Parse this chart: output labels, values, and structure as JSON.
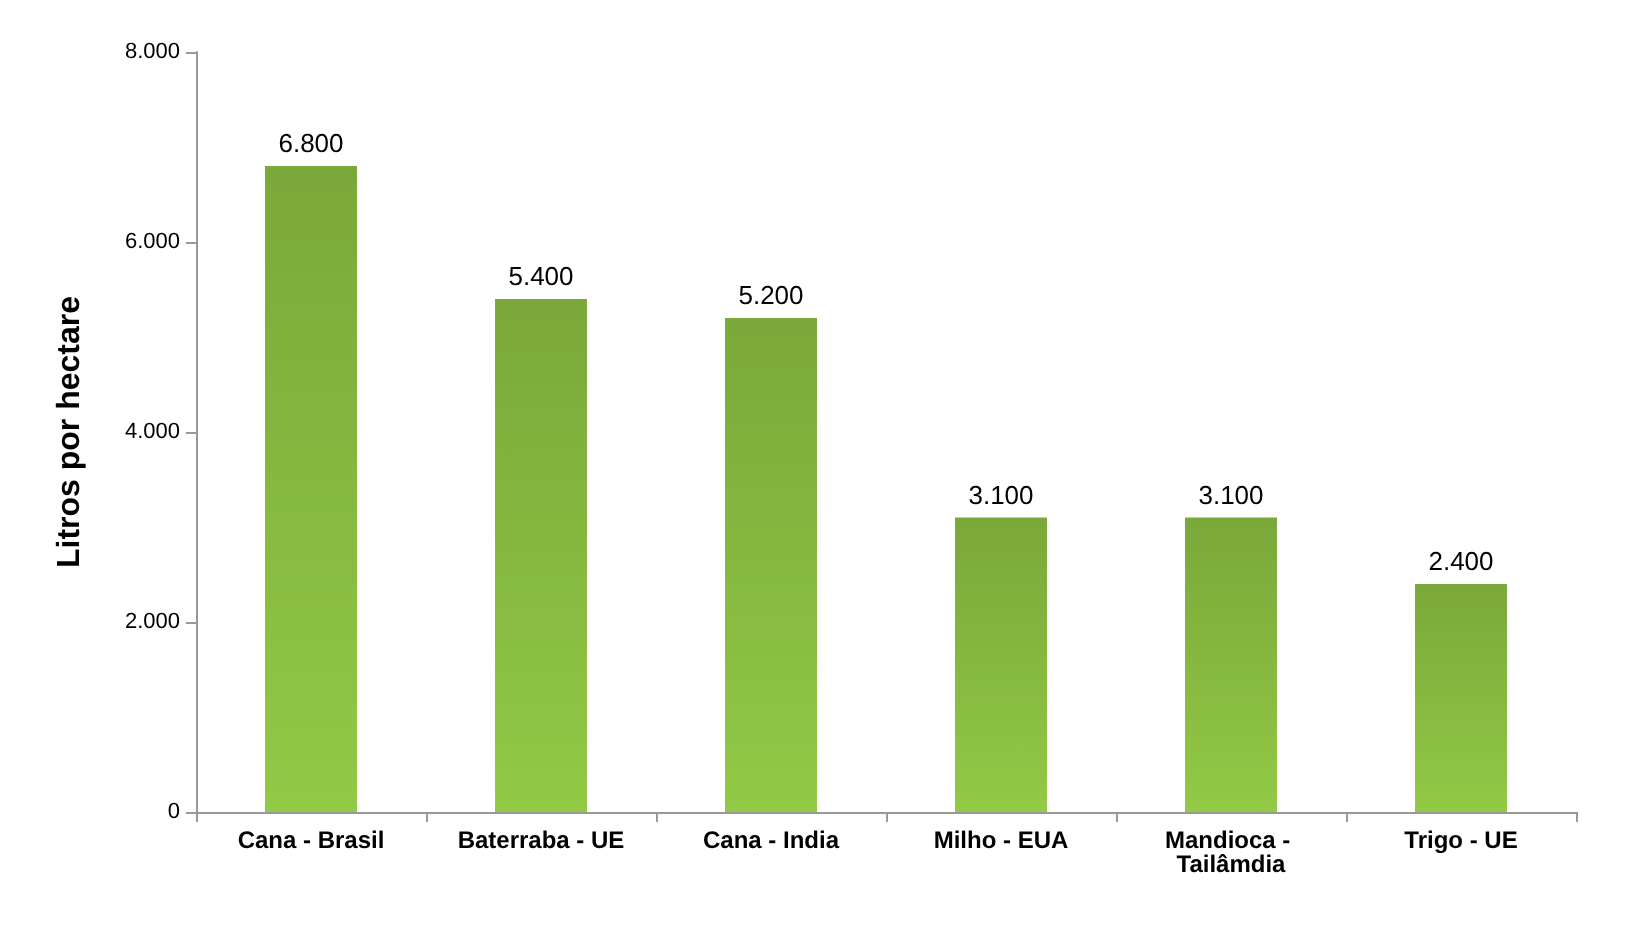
{
  "chart_data": {
    "type": "bar",
    "ylabel": "Litros por hectare",
    "categories": [
      "Cana - Brasil",
      "Baterraba - UE",
      "Cana - India",
      "Milho - EUA",
      "Mandioca - Tailâmdia",
      "Trigo - UE"
    ],
    "values": [
      6800,
      5400,
      5200,
      3100,
      3100,
      2400
    ],
    "value_labels": [
      "6.800",
      "5.400",
      "5.200",
      "3.100",
      "3.100",
      "2.400"
    ],
    "color": "#7aa83a",
    "ylim": [
      0,
      8000
    ],
    "yticks": [
      {
        "value": 0,
        "label": "0"
      },
      {
        "value": 2000,
        "label": "2.000"
      },
      {
        "value": 4000,
        "label": "4.000"
      },
      {
        "value": 6000,
        "label": "6.000"
      },
      {
        "value": 8000,
        "label": "8.000"
      }
    ]
  }
}
